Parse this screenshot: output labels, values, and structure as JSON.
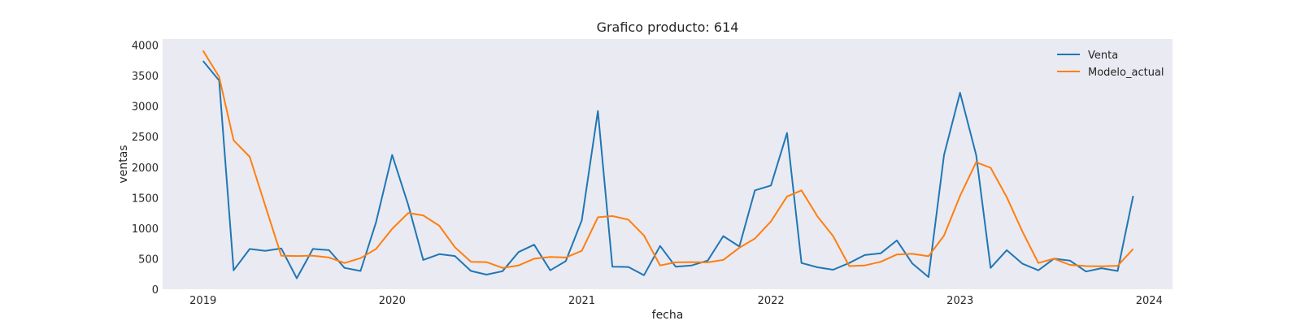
{
  "chart_data": {
    "type": "line",
    "title": "Grafico producto: 614",
    "xlabel": "fecha",
    "ylabel": "ventas",
    "ylim": [
      0,
      4100
    ],
    "xlim": [
      "2018-10-15",
      "2024-02-15"
    ],
    "yticks": [
      0,
      500,
      1000,
      1500,
      2000,
      2500,
      3000,
      3500,
      4000
    ],
    "xticks": [
      {
        "label": "2019",
        "date": "2019-01-01"
      },
      {
        "label": "2020",
        "date": "2020-01-01"
      },
      {
        "label": "2021",
        "date": "2021-01-01"
      },
      {
        "label": "2022",
        "date": "2022-01-01"
      },
      {
        "label": "2023",
        "date": "2023-01-01"
      },
      {
        "label": "2024",
        "date": "2024-01-01"
      }
    ],
    "grid": false,
    "legend_position": "top-right",
    "x": [
      "2019-01-01",
      "2019-02-01",
      "2019-03-01",
      "2019-04-01",
      "2019-05-01",
      "2019-06-01",
      "2019-07-01",
      "2019-08-01",
      "2019-09-01",
      "2019-10-01",
      "2019-11-01",
      "2019-12-01",
      "2020-01-01",
      "2020-02-01",
      "2020-03-01",
      "2020-04-01",
      "2020-05-01",
      "2020-06-01",
      "2020-07-01",
      "2020-08-01",
      "2020-09-01",
      "2020-10-01",
      "2020-11-01",
      "2020-12-01",
      "2021-01-01",
      "2021-02-01",
      "2021-03-01",
      "2021-04-01",
      "2021-05-01",
      "2021-06-01",
      "2021-07-01",
      "2021-08-01",
      "2021-09-01",
      "2021-10-01",
      "2021-11-01",
      "2021-12-01",
      "2022-01-01",
      "2022-02-01",
      "2022-03-01",
      "2022-04-01",
      "2022-05-01",
      "2022-06-01",
      "2022-07-01",
      "2022-08-01",
      "2022-09-01",
      "2022-10-01",
      "2022-11-01",
      "2022-12-01",
      "2023-01-01",
      "2023-02-01",
      "2023-03-01",
      "2023-04-01",
      "2023-05-01",
      "2023-06-01",
      "2023-07-01",
      "2023-08-01",
      "2023-09-01",
      "2023-10-01",
      "2023-11-01",
      "2023-12-01"
    ],
    "series": [
      {
        "name": "Venta",
        "color": "#1f77b4",
        "values": [
          3740,
          3420,
          310,
          660,
          630,
          670,
          180,
          660,
          640,
          350,
          300,
          1100,
          2200,
          1380,
          480,
          575,
          545,
          300,
          240,
          295,
          610,
          730,
          310,
          460,
          1130,
          2920,
          370,
          365,
          230,
          710,
          370,
          390,
          470,
          870,
          700,
          1620,
          1700,
          2560,
          430,
          360,
          320,
          430,
          560,
          590,
          800,
          420,
          200,
          2200,
          3220,
          2200,
          350,
          640,
          420,
          310,
          500,
          470,
          290,
          345,
          300,
          1530
        ]
      },
      {
        "name": "Modelo_actual",
        "color": "#ff7f0e",
        "values": [
          3910,
          3480,
          2440,
          2170,
          1370,
          550,
          545,
          550,
          520,
          430,
          510,
          660,
          990,
          1250,
          1210,
          1040,
          690,
          450,
          445,
          350,
          390,
          500,
          530,
          520,
          630,
          1180,
          1200,
          1140,
          880,
          390,
          440,
          445,
          440,
          480,
          680,
          830,
          1110,
          1520,
          1620,
          1190,
          870,
          380,
          390,
          450,
          570,
          580,
          540,
          880,
          1530,
          2080,
          1990,
          1510,
          950,
          430,
          500,
          400,
          380,
          375,
          385,
          660
        ]
      }
    ]
  }
}
